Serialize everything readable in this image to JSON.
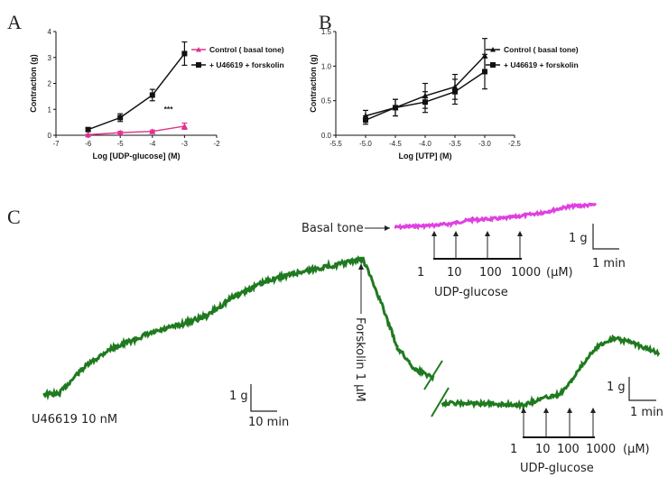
{
  "chart_data": [
    {
      "type": "line",
      "panel": "A",
      "xlabel": "Log [UDP-glucose] (M)",
      "ylabel": "Contraction (g)",
      "xlim": [
        -7,
        -2
      ],
      "ylim": [
        0,
        4
      ],
      "xticks": [
        "-7",
        "-6",
        "-5",
        "-4",
        "-3",
        "-2"
      ],
      "yticks": [
        "0",
        "1",
        "2",
        "3",
        "4"
      ],
      "annotation": "***",
      "legend_position": "top-right",
      "series": [
        {
          "name": "Control ( basal tone)",
          "color": "#e0338f",
          "marker": "triangle",
          "x": [
            -6,
            -5,
            -4,
            -3
          ],
          "y": [
            0.02,
            0.1,
            0.15,
            0.35
          ],
          "err": [
            0.02,
            0.05,
            0.05,
            0.12
          ]
        },
        {
          "name": "+ U46619 + forskolin",
          "color": "#111111",
          "marker": "square",
          "x": [
            -6,
            -5,
            -4,
            -3
          ],
          "y": [
            0.22,
            0.68,
            1.55,
            3.15
          ],
          "err": [
            0.06,
            0.15,
            0.22,
            0.45
          ]
        }
      ]
    },
    {
      "type": "line",
      "panel": "B",
      "xlabel": "Log [UTP] (M)",
      "ylabel": "Contraction (g)",
      "xlim": [
        -5.5,
        -2.5
      ],
      "ylim": [
        0,
        1.5
      ],
      "xticks": [
        "-5.5",
        "-5.0",
        "-4.5",
        "-4.0",
        "-3.5",
        "-3.0",
        "-2.5"
      ],
      "yticks": [
        "0.0",
        "0.5",
        "1.0",
        "1.5"
      ],
      "legend_position": "top-right",
      "series": [
        {
          "name": "Control ( basal tone)",
          "color": "#111111",
          "marker": "triangle",
          "x": [
            -5,
            -4.5,
            -4,
            -3.5,
            -3
          ],
          "y": [
            0.28,
            0.4,
            0.57,
            0.7,
            1.15
          ],
          "err": [
            0.08,
            0.12,
            0.18,
            0.18,
            0.25
          ]
        },
        {
          "name": "+ U46619 + forskolin",
          "color": "#111111",
          "marker": "square",
          "x": [
            -5,
            -4.5,
            -4,
            -3.5,
            -3
          ],
          "y": [
            0.22,
            0.4,
            0.48,
            0.63,
            0.92
          ],
          "err": [
            0.06,
            0.12,
            0.15,
            0.18,
            0.25
          ]
        }
      ]
    },
    {
      "type": "line",
      "panel": "C",
      "description_labels": {
        "basal_tone": "Basal tone",
        "forskolin": "Forskolin  1 μM",
        "u46619": "U46619 10 nM",
        "udp_glucose": "UDP-glucose",
        "conc_top": [
          "1",
          "10",
          "100",
          "1000",
          "(μM)"
        ],
        "conc_bottom": [
          "1",
          "10",
          "100",
          "1000",
          "(μM)"
        ],
        "scale_g": "1 g",
        "scale_1min": "1 min",
        "scale_10min": "10 min"
      },
      "colors": {
        "basal_trace": "#e040e0",
        "main_trace": "#1f7a1f"
      }
    }
  ]
}
